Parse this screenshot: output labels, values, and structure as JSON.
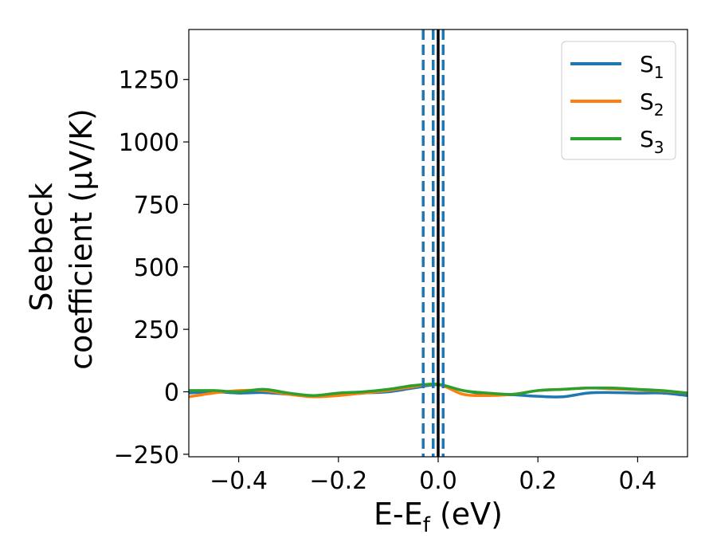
{
  "chart_data": {
    "type": "line",
    "xlabel": {
      "main": "E-E",
      "sub": "f",
      "tail": " (eV)"
    },
    "ylabel": {
      "line1": "Seebeck",
      "line2": "coefficient  (μV/K)"
    },
    "xlim": [
      -0.5,
      0.5
    ],
    "ylim": [
      -260,
      1450
    ],
    "xticks": [
      {
        "value": -0.4,
        "label": "−0.4"
      },
      {
        "value": -0.2,
        "label": "−0.2"
      },
      {
        "value": 0.0,
        "label": "0.0"
      },
      {
        "value": 0.2,
        "label": "0.2"
      },
      {
        "value": 0.4,
        "label": "0.4"
      }
    ],
    "yticks": [
      {
        "value": -250,
        "label": "−250"
      },
      {
        "value": 0,
        "label": "0"
      },
      {
        "value": 250,
        "label": "250"
      },
      {
        "value": 500,
        "label": "500"
      },
      {
        "value": 750,
        "label": "750"
      },
      {
        "value": 1000,
        "label": "1000"
      },
      {
        "value": 1250,
        "label": "1250"
      }
    ],
    "grid": false,
    "legend_position": "top-right",
    "x": [
      -0.5,
      -0.45,
      -0.4,
      -0.35,
      -0.3,
      -0.25,
      -0.2,
      -0.15,
      -0.1,
      -0.05,
      0.0,
      0.05,
      0.1,
      0.15,
      0.2,
      0.25,
      0.3,
      0.35,
      0.4,
      0.45,
      0.5
    ],
    "series": [
      {
        "name": "S",
        "sub": "1",
        "color": "#1f77b4",
        "values": [
          -5,
          0,
          -5,
          -3,
          -10,
          -18,
          -12,
          -5,
          0,
          15,
          28,
          5,
          -10,
          -12,
          -18,
          -20,
          -5,
          -3,
          -5,
          -5,
          -15
        ]
      },
      {
        "name": "S",
        "sub": "2",
        "color": "#ff7f0e",
        "values": [
          -20,
          -5,
          5,
          5,
          -10,
          -20,
          -15,
          -5,
          5,
          20,
          30,
          -10,
          -15,
          -10,
          5,
          10,
          15,
          12,
          8,
          3,
          -5
        ]
      },
      {
        "name": "S",
        "sub": "3",
        "color": "#2ca02c",
        "values": [
          5,
          5,
          0,
          10,
          -5,
          -15,
          -5,
          0,
          10,
          25,
          30,
          5,
          -5,
          -10,
          5,
          10,
          15,
          15,
          10,
          5,
          -5
        ]
      }
    ],
    "vlines": [
      {
        "x": -0.03,
        "style": "dashed",
        "color": "#1f77b4"
      },
      {
        "x": -0.01,
        "style": "dashed",
        "color": "#1f77b4"
      },
      {
        "x": 0.01,
        "style": "dashed",
        "color": "#1f77b4"
      },
      {
        "x": 0.0,
        "style": "solid",
        "color": "#000000"
      }
    ]
  }
}
